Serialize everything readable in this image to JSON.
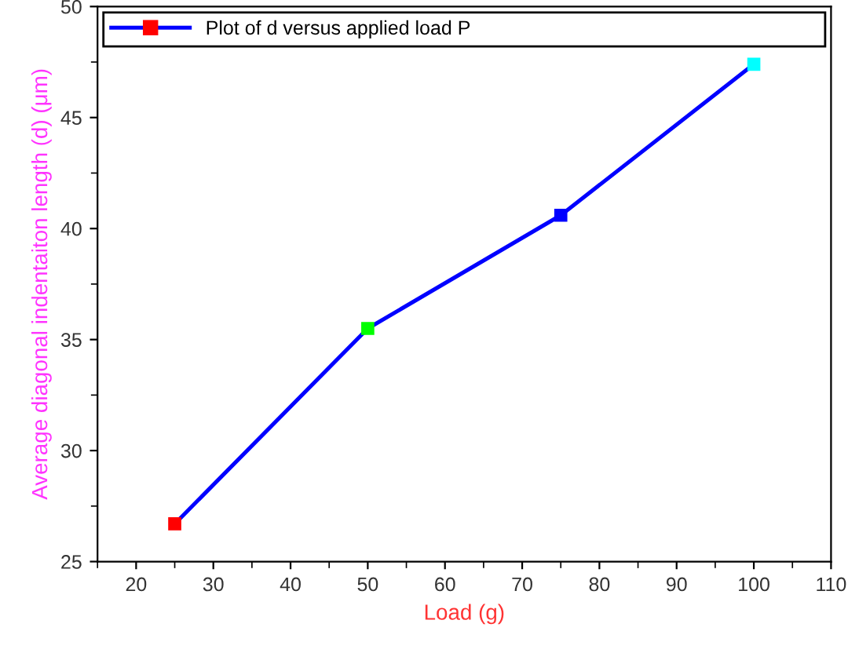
{
  "chart_data": {
    "type": "line",
    "xlabel": "Load (g)",
    "ylabel": "Average diagonal indentaiton length (d) (μm)",
    "x": [
      25,
      50,
      75,
      100
    ],
    "series": [
      {
        "name": "Plot of d versus applied load P",
        "color": "#0000ff",
        "colors": [
          "#ff0000",
          "#00ff00",
          "#0000ff",
          "#00ffff"
        ],
        "values": [
          26.7,
          35.5,
          40.6,
          47.4
        ]
      }
    ],
    "xlim": [
      15,
      110
    ],
    "xticks": [
      20,
      30,
      40,
      50,
      60,
      70,
      80,
      90,
      100,
      110
    ],
    "ylim": [
      25,
      50
    ],
    "yticks": [
      25,
      30,
      35,
      40,
      45,
      50
    ],
    "marker": "square",
    "line_style": "solid",
    "legend": "top",
    "grid": false
  }
}
